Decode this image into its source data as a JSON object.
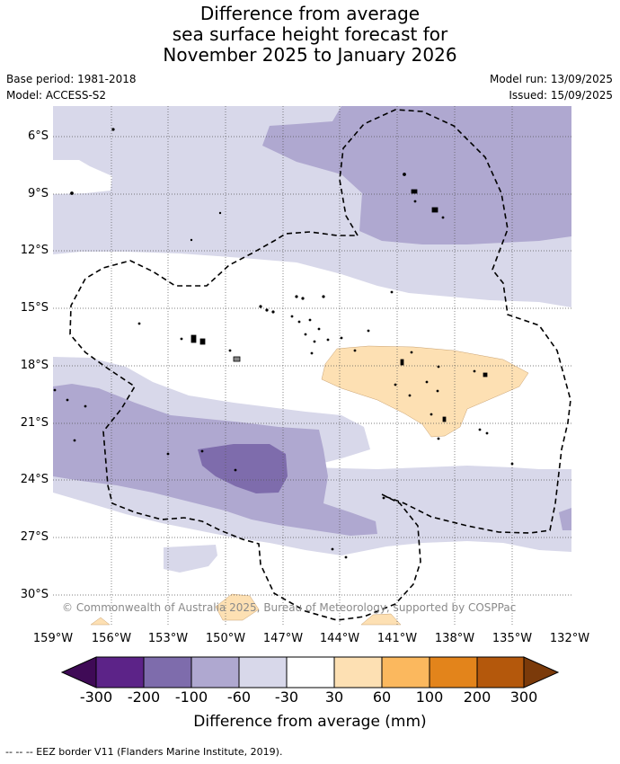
{
  "title": {
    "line1": "Difference from average",
    "line2": "sea surface height forecast for",
    "line3": "November 2025 to January 2026"
  },
  "meta": {
    "base_period": "Base period: 1981-2018",
    "model": "Model: ACCESS-S2",
    "model_run": "Model run: 13/09/2025",
    "issued": "Issued: 15/09/2025"
  },
  "copyright": "© Commonwealth of Australia 2025, Bureau of Meteorology, supported by COSPPac",
  "lat_labels": [
    "6°S",
    "9°S",
    "12°S",
    "15°S",
    "18°S",
    "21°S",
    "24°S",
    "27°S",
    "30°S"
  ],
  "lon_labels": [
    "159°W",
    "156°W",
    "153°W",
    "150°W",
    "147°W",
    "144°W",
    "141°W",
    "138°W",
    "135°W",
    "132°W"
  ],
  "colorbar": {
    "title": "Difference from average (mm)",
    "tick_labels": [
      "-300",
      "-200",
      "-100",
      "-60",
      "-30",
      "30",
      "60",
      "100",
      "200",
      "300"
    ],
    "colors": [
      "#3f0a56",
      "#5c2388",
      "#7e6cac",
      "#afa8d0",
      "#d8d8ea",
      "#ffffff",
      "#fde0b3",
      "#fbb85e",
      "#e3841b",
      "#b4580c",
      "#7b3a0a"
    ]
  },
  "legend_footer": "-- -- -- EEZ border V11 (Flanders Marine Institute, 2019).",
  "map": {
    "lat_range": [
      "5°S",
      "31.5°S"
    ],
    "lon_range": [
      "159°W",
      "132°W"
    ]
  }
}
